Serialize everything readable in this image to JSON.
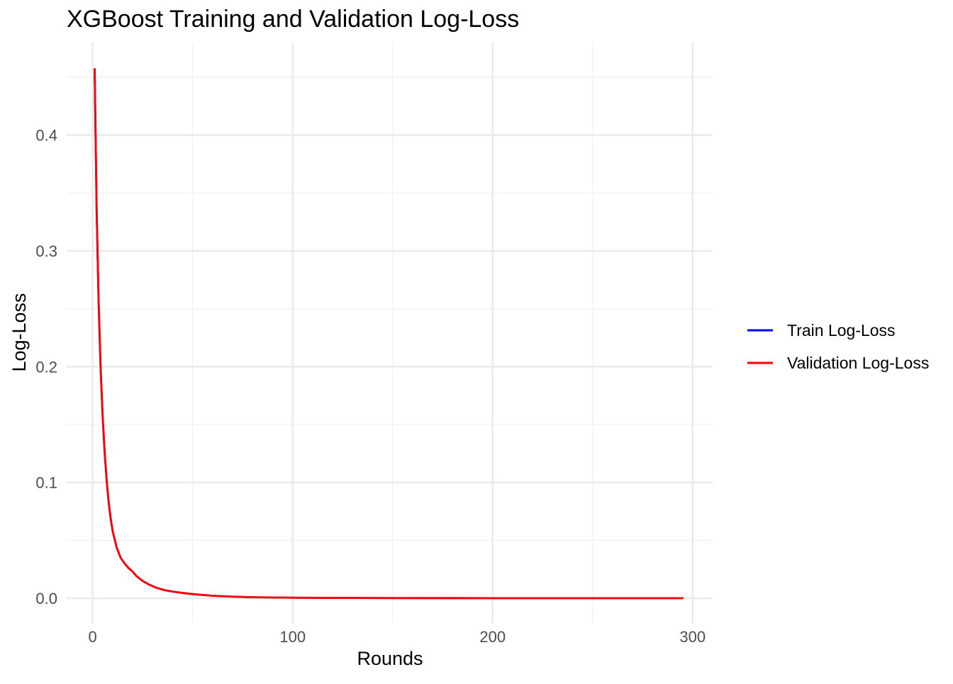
{
  "chart_data": {
    "type": "line",
    "title": "XGBoost Training and Validation Log-Loss",
    "xlabel": "Rounds",
    "ylabel": "Log-Loss",
    "xlim": [
      -13,
      310
    ],
    "ylim": [
      -0.022,
      0.48
    ],
    "x_ticks": [
      0,
      100,
      200,
      300
    ],
    "x_tick_labels": [
      "0",
      "100",
      "200",
      "300"
    ],
    "y_ticks": [
      0.0,
      0.1,
      0.2,
      0.3,
      0.4
    ],
    "y_tick_labels": [
      "0.0",
      "0.1",
      "0.2",
      "0.3",
      "0.4"
    ],
    "x_minor_ticks": [
      50,
      150,
      250
    ],
    "y_minor_ticks": [
      0.05,
      0.15,
      0.25,
      0.35,
      0.45
    ],
    "grid": true,
    "legend_position": "right",
    "series": [
      {
        "name": "Train Log-Loss",
        "color": "#0000ff",
        "x": [
          1,
          2,
          3,
          4,
          5,
          6,
          7,
          8,
          9,
          10,
          12,
          14,
          16,
          18,
          20,
          22,
          25,
          28,
          32,
          36,
          40,
          45,
          50,
          60,
          70,
          80,
          100,
          125,
          150,
          200,
          250,
          295
        ],
        "y": [
          0.457,
          0.335,
          0.255,
          0.198,
          0.157,
          0.126,
          0.102,
          0.083,
          0.069,
          0.058,
          0.044,
          0.035,
          0.03,
          0.026,
          0.023,
          0.019,
          0.015,
          0.012,
          0.009,
          0.007,
          0.0058,
          0.0046,
          0.0036,
          0.0022,
          0.0014,
          0.0009,
          0.0005,
          0.0003,
          0.0002,
          0.0001,
          0.0001,
          0.0001
        ]
      },
      {
        "name": "Validation Log-Loss",
        "color": "#ff0000",
        "x": [
          1,
          2,
          3,
          4,
          5,
          6,
          7,
          8,
          9,
          10,
          12,
          14,
          16,
          18,
          20,
          22,
          25,
          28,
          32,
          36,
          40,
          45,
          50,
          60,
          70,
          80,
          100,
          125,
          150,
          200,
          250,
          295
        ],
        "y": [
          0.457,
          0.335,
          0.255,
          0.198,
          0.157,
          0.126,
          0.102,
          0.083,
          0.069,
          0.058,
          0.044,
          0.035,
          0.03,
          0.026,
          0.023,
          0.019,
          0.015,
          0.012,
          0.009,
          0.007,
          0.0058,
          0.0046,
          0.0036,
          0.0022,
          0.0014,
          0.0009,
          0.0005,
          0.0003,
          0.0002,
          0.0001,
          0.0001,
          0.0001
        ]
      }
    ]
  }
}
